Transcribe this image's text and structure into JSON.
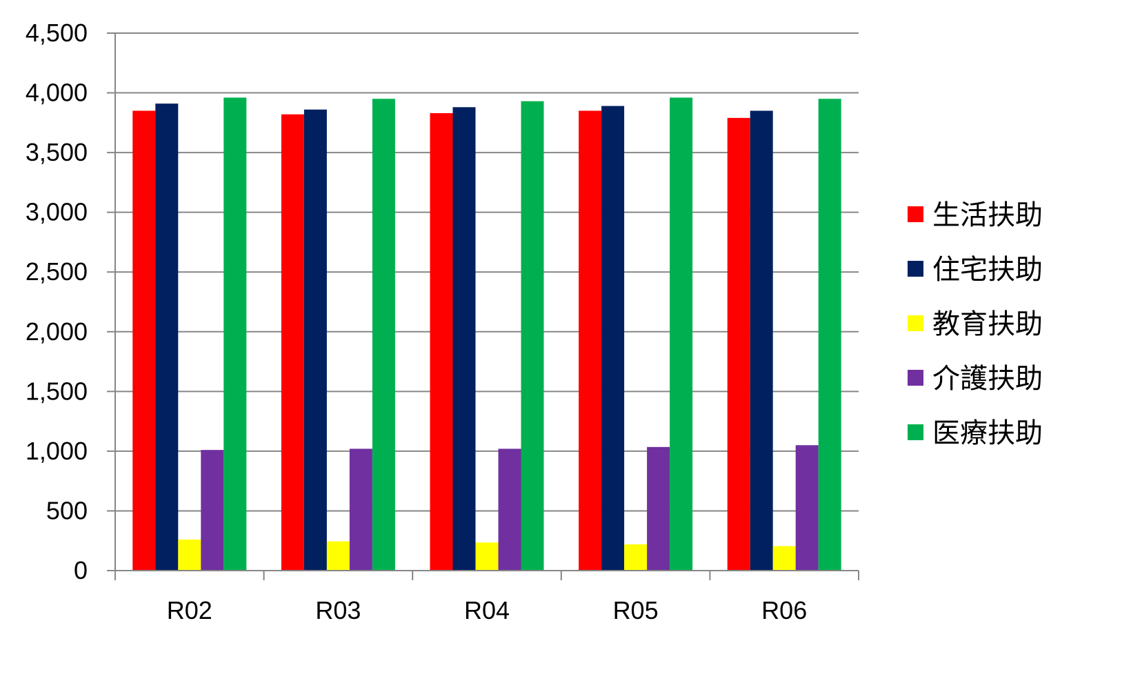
{
  "chart_data": {
    "type": "bar",
    "title": "",
    "xlabel": "",
    "ylabel": "",
    "categories": [
      "R02",
      "R03",
      "R04",
      "R05",
      "R06"
    ],
    "ylim": [
      0,
      4500
    ],
    "yticks": [
      0,
      500,
      1000,
      1500,
      2000,
      2500,
      3000,
      3500,
      4000,
      4500
    ],
    "ytick_labels": [
      "0",
      "500",
      "1,000",
      "1,500",
      "2,000",
      "2,500",
      "3,000",
      "3,500",
      "4,000",
      "4,500"
    ],
    "grid": true,
    "legend_position": "right",
    "series": [
      {
        "name": "生活扶助",
        "color": "#ff0000",
        "values": [
          3850,
          3820,
          3830,
          3850,
          3790
        ]
      },
      {
        "name": "住宅扶助",
        "color": "#002060",
        "values": [
          3910,
          3860,
          3880,
          3890,
          3850
        ]
      },
      {
        "name": "教育扶助",
        "color": "#ffff00",
        "values": [
          260,
          245,
          235,
          220,
          205
        ]
      },
      {
        "name": "介護扶助",
        "color": "#7030a0",
        "values": [
          1010,
          1020,
          1020,
          1035,
          1050
        ]
      },
      {
        "name": "医療扶助",
        "color": "#00b050",
        "values": [
          3960,
          3950,
          3930,
          3960,
          3950
        ]
      }
    ]
  }
}
